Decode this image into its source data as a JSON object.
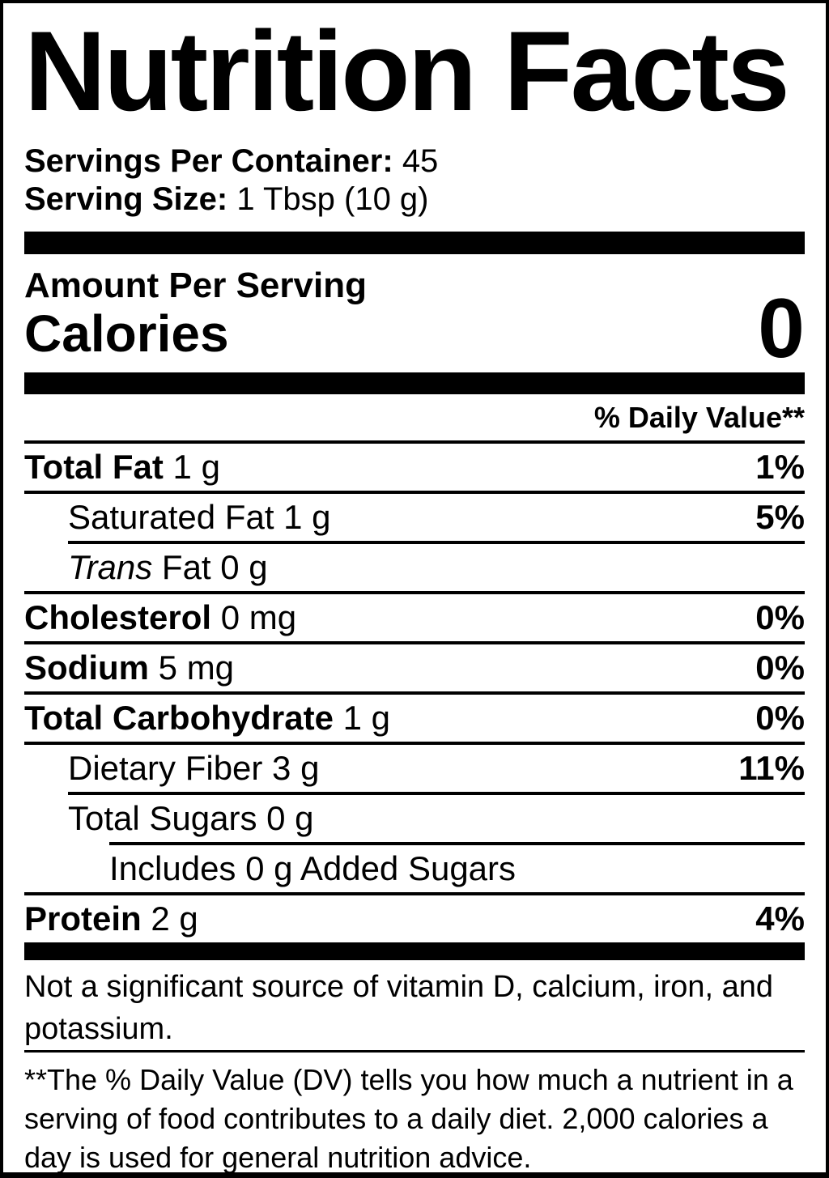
{
  "title": "Nutrition Facts",
  "servings_per_container": {
    "label": "Servings Per Container:",
    "value": "45"
  },
  "serving_size": {
    "label": "Serving Size:",
    "value": "1 Tbsp (10 g)"
  },
  "amount_per_serving": "Amount Per Serving",
  "calories": {
    "label": "Calories",
    "value": "0"
  },
  "daily_value_header": "% Daily Value**",
  "rows": [
    {
      "name": "Total Fat",
      "strong": "Total Fat",
      "rest": " 1 g",
      "dv": "1%"
    },
    {
      "name": "Saturated Fat",
      "strong": "",
      "rest": "Saturated Fat 1 g",
      "dv": "5%"
    },
    {
      "name": "Trans Fat",
      "strong": "Trans",
      "rest": " Fat 0 g",
      "dv": ""
    },
    {
      "name": "Cholesterol",
      "strong": "Cholesterol",
      "rest": " 0 mg",
      "dv": "0%"
    },
    {
      "name": "Sodium",
      "strong": "Sodium",
      "rest": " 5 mg",
      "dv": "0%"
    },
    {
      "name": "Total Carbohydrate",
      "strong": "Total Carbohydrate",
      "rest": " 1 g",
      "dv": "0%"
    },
    {
      "name": "Dietary Fiber",
      "strong": "",
      "rest": "Dietary Fiber 3 g",
      "dv": "11%"
    },
    {
      "name": "Total Sugars",
      "strong": "",
      "rest": "Total Sugars 0 g",
      "dv": ""
    },
    {
      "name": "Added Sugars",
      "strong": "",
      "rest": "Includes 0 g Added Sugars",
      "dv": ""
    },
    {
      "name": "Protein",
      "strong": "Protein",
      "rest": " 2 g",
      "dv": "4%"
    }
  ],
  "not_significant_note": "Not a significant source of vitamin D, calcium, iron, and potassium.",
  "footnote": "**The % Daily Value (DV) tells you how much a nutrient in a serving of food contributes to a daily diet. 2,000 calories a day is used for general nutrition advice.",
  "colors": {
    "ink": "#000000",
    "background": "#ffffff"
  }
}
